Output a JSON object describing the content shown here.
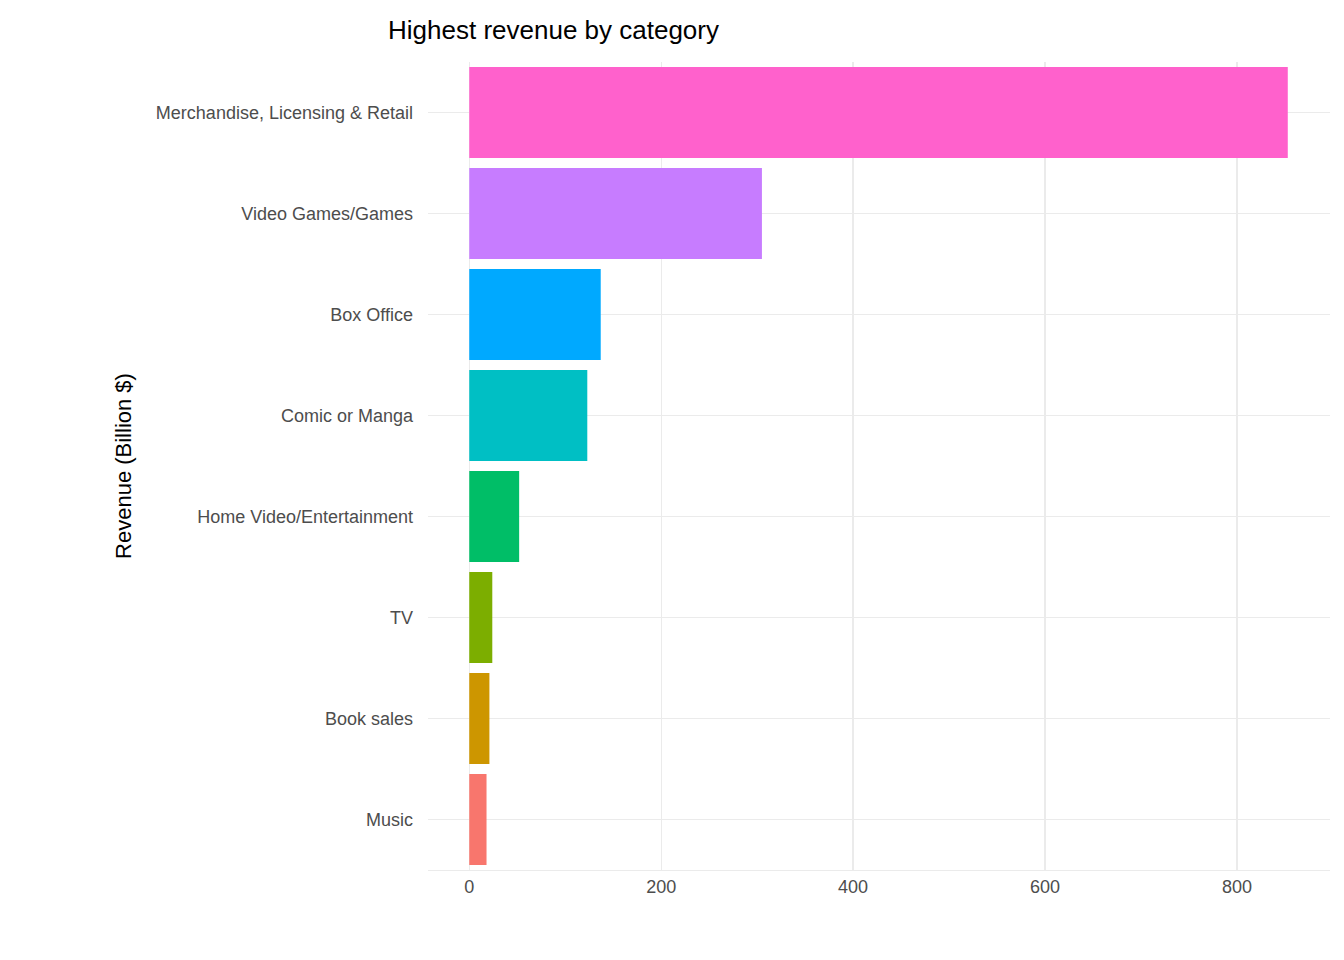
{
  "chart_data": {
    "type": "bar",
    "orientation": "horizontal",
    "title": "Highest revenue by category",
    "y_label": "Revenue (Billion $)",
    "categories": [
      "Merchandise, Licensing & Retail",
      "Video Games/Games",
      "Box Office",
      "Comic or Manga",
      "Home Video/Entertainment",
      "TV",
      "Book sales",
      "Music"
    ],
    "values": [
      853,
      305,
      137,
      123,
      52,
      24,
      21,
      18
    ],
    "colors": [
      "#FF61CC",
      "#C77CFF",
      "#00A9FF",
      "#00BFC4",
      "#00BE67",
      "#7CAE00",
      "#CD9600",
      "#F8766D"
    ],
    "xlim": [
      -43,
      897
    ],
    "xticks": [
      0,
      200,
      400,
      600,
      800
    ],
    "grid": true
  }
}
